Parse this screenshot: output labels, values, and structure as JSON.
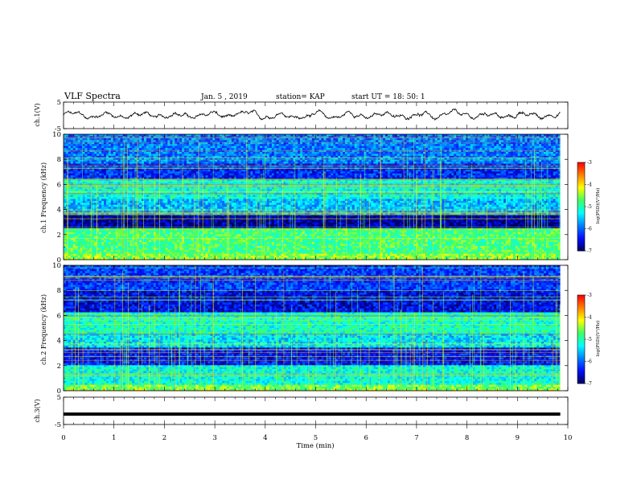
{
  "header": {
    "title": "VLF Spectra",
    "date": "Jan. 5 , 2019",
    "station": "station= KAP",
    "start_ut": "start UT = 18: 50: 1"
  },
  "colors": {
    "waveform": "#000000",
    "spectrogram_palette": [
      "#000060",
      "#0010ff",
      "#0080ff",
      "#00ffff",
      "#40ff60",
      "#ffff00",
      "#ff8000",
      "#ff0000"
    ]
  },
  "chart_data": [
    {
      "type": "line",
      "panel": "ch1-waveform",
      "ylabel": "ch.1(V)",
      "ylim": [
        -5,
        5
      ],
      "yticks": [
        "5",
        "-5"
      ],
      "xlim": [
        0,
        10
      ],
      "description_values": {
        "mean": 0,
        "amplitude_range": [
          -2,
          2
        ]
      }
    },
    {
      "type": "heatmap",
      "panel": "ch1-spectrogram",
      "ylabel": "ch.1 Frequency (kHz)",
      "ylim": [
        0,
        10
      ],
      "yticks": [
        "0",
        "2",
        "4",
        "6",
        "8",
        "10"
      ],
      "xlim": [
        0,
        10
      ],
      "colorbar": {
        "label": "log(PSD)(V²/Hz)",
        "range": [
          -7,
          -3
        ],
        "ticks": [
          "-3",
          "-4",
          "-5",
          "-6",
          "-7"
        ]
      },
      "bands_khz": [
        {
          "range": [
            0,
            0.4
          ],
          "level": -4.5
        },
        {
          "range": [
            0.4,
            2.5
          ],
          "level": -4.8
        },
        {
          "range": [
            2.5,
            3.6
          ],
          "level": -6.8
        },
        {
          "range": [
            3.6,
            4.8
          ],
          "level": -5.6
        },
        {
          "range": [
            4.8,
            6.4
          ],
          "level": -5.2
        },
        {
          "range": [
            6.4,
            7.6
          ],
          "level": -6.3
        },
        {
          "range": [
            7.6,
            10
          ],
          "level": -5.9
        }
      ]
    },
    {
      "type": "heatmap",
      "panel": "ch2-spectrogram",
      "ylabel": "ch.2 Frequency (kHz)",
      "ylim": [
        0,
        10
      ],
      "yticks": [
        "0",
        "2",
        "4",
        "6",
        "8",
        "10"
      ],
      "xlim": [
        0,
        10
      ],
      "colorbar": {
        "label": "log(PSD)(V²/Hz)",
        "range": [
          -7,
          -3
        ],
        "ticks": [
          "-3",
          "-4",
          "-5",
          "-6",
          "-7"
        ]
      },
      "bands_khz": [
        {
          "range": [
            0,
            0.4
          ],
          "level": -4.6
        },
        {
          "range": [
            0.4,
            2.0
          ],
          "level": -5.2
        },
        {
          "range": [
            2.0,
            3.4
          ],
          "level": -6.4
        },
        {
          "range": [
            3.4,
            4.6
          ],
          "level": -5.4
        },
        {
          "range": [
            4.6,
            6.3
          ],
          "level": -5.1
        },
        {
          "range": [
            6.3,
            8.0
          ],
          "level": -6.5
        },
        {
          "range": [
            8.0,
            10
          ],
          "level": -6.2
        }
      ]
    },
    {
      "type": "line",
      "panel": "ch3-waveform",
      "ylabel": "ch.3(V)",
      "ylim": [
        -5,
        5
      ],
      "yticks": [
        "5",
        "-5"
      ],
      "xlim": [
        0,
        10
      ],
      "constant_value": -1.2
    }
  ],
  "x_axis": {
    "label": "Time (min)",
    "ticks": [
      "0",
      "1",
      "2",
      "3",
      "4",
      "5",
      "6",
      "7",
      "8",
      "9",
      "10"
    ],
    "data_end": 9.85
  }
}
